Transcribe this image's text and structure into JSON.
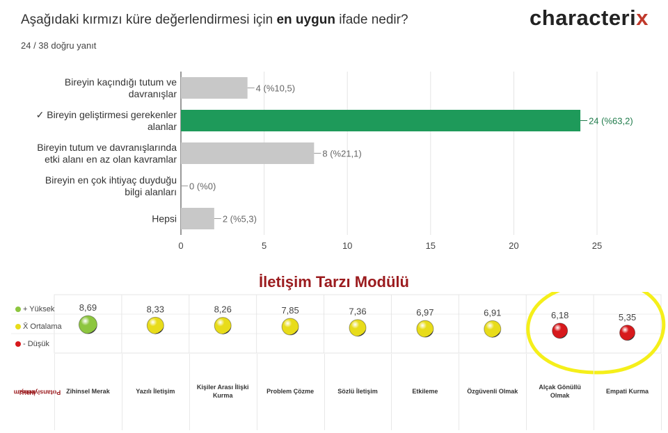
{
  "header": {
    "question_pre": "Aşağıdaki kırmızı küre değerlendirmesi için ",
    "question_bold": "en uygun",
    "question_post": " ifade nedir?",
    "answered": "24 / 38 doğru yanıt",
    "logo_main": "characteri",
    "logo_x": "x"
  },
  "chart_data": [
    {
      "type": "bar",
      "orientation": "horizontal",
      "categories": [
        [
          "Bireyin kaçındığı tutum ve",
          "davranışlar"
        ],
        [
          "✓ Bireyin geliştirmesi gerekenler",
          "alanlar"
        ],
        [
          "Bireyin tutum ve davranışlarında",
          "etki alanı en az olan kavramlar"
        ],
        [
          "Bireyin en çok ihtiyaç duyduğu",
          "bilgi alanları"
        ],
        [
          "Hepsi"
        ]
      ],
      "values": [
        4,
        24,
        8,
        0,
        2
      ],
      "data_labels": [
        "4 (%10,5)",
        "24 (%63,2)",
        "8 (%21,1)",
        "0 (%0)",
        "2 (%5,3)"
      ],
      "correct_index": 1,
      "xlim": [
        0,
        25
      ],
      "xticks": [
        0,
        5,
        10,
        15,
        20,
        25
      ],
      "grid": true,
      "colors": {
        "default": "#c8c8c8",
        "correct": "#1e9a5a",
        "label": "#666666",
        "correct_label": "#1e7a4a"
      }
    },
    {
      "type": "scatter",
      "title": "İletişim Tarzı Modülü",
      "categories": [
        [
          "Zihinsel Merak"
        ],
        [
          "Yazılı İletişim"
        ],
        [
          "Kişiler Arası İlişki",
          "Kurma"
        ],
        [
          "Problem Çözme"
        ],
        [
          "Sözlü İletişim"
        ],
        [
          "Etkileme"
        ],
        [
          "Özgüvenli Olmak"
        ],
        [
          "Alçak Gönüllü",
          "Olmak"
        ],
        [
          "Empati Kurma"
        ]
      ],
      "values": [
        8.69,
        8.33,
        8.26,
        7.85,
        7.36,
        6.97,
        6.91,
        6.18,
        5.35
      ],
      "value_labels": [
        "8,69",
        "8,33",
        "8,26",
        "7,85",
        "7,36",
        "6,97",
        "6,91",
        "6,18",
        "5,35"
      ],
      "levels": [
        "high",
        "avg",
        "avg",
        "avg",
        "avg",
        "avg",
        "avg",
        "low",
        "low"
      ],
      "legend": [
        {
          "label": "+ Yüksek",
          "level": "high"
        },
        {
          "label": "X̄ Ortalama",
          "level": "avg"
        },
        {
          "label": "- Düşük",
          "level": "low"
        }
      ],
      "side_label": [
        "İletişim",
        "Potansiyeliniz"
      ],
      "level_colors": {
        "high": "#8dc63f",
        "avg": "#e8dc1a",
        "low": "#d7191c"
      },
      "highlight_color": "#f5ef1a",
      "highlighted": [
        7,
        8
      ]
    }
  ]
}
